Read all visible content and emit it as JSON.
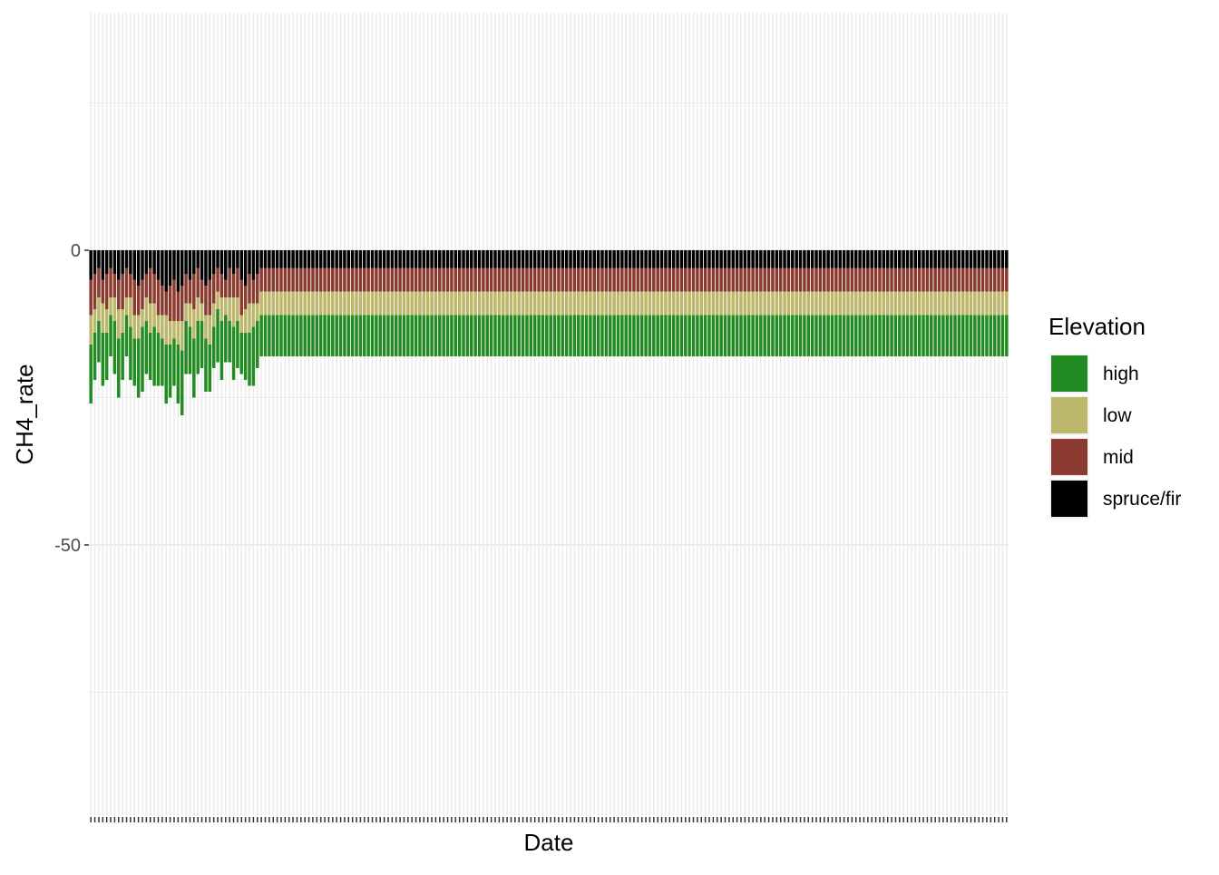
{
  "chart_data": {
    "type": "bar",
    "stacked": true,
    "title": "",
    "xlabel": "Date",
    "ylabel": "CH4_rate",
    "y_ticks": [
      0,
      -50
    ],
    "y_tick_labels": [
      "0",
      "-50"
    ],
    "ylim": [
      -95,
      40
    ],
    "x_tick_labels_shown": false,
    "grid": true,
    "legend": {
      "title": "Elevation",
      "position": "right",
      "entries": [
        "high",
        "low",
        "mid",
        "spruce/fir"
      ]
    },
    "series_order_bottom_to_top": [
      "spruce/fir",
      "mid",
      "low",
      "high"
    ],
    "colors": {
      "high": "#228B22",
      "low": "#BDB76B",
      "mid": "#8B3A2F",
      "spruce/fir": "#000000"
    },
    "panel_background": "#ffffff",
    "grid_color": "#ebebeb",
    "x": [
      0,
      1,
      2,
      3,
      4,
      5,
      6,
      7,
      8,
      9,
      10,
      11,
      12,
      13,
      14,
      15,
      16,
      17,
      18,
      19,
      20,
      21,
      22,
      23,
      24,
      25,
      26,
      27,
      28,
      29,
      30,
      31,
      32,
      33,
      34,
      35,
      36,
      37,
      38,
      39,
      40,
      41,
      42,
      43,
      44,
      45,
      46,
      47,
      48,
      49,
      50,
      51,
      52,
      53,
      54,
      55,
      56,
      57,
      58,
      59,
      60,
      61,
      62,
      63,
      64,
      65,
      66,
      67,
      68,
      69,
      70,
      71,
      72,
      73,
      74,
      75,
      76,
      77,
      78,
      79,
      80,
      81,
      82,
      83,
      84,
      85,
      86,
      87,
      88,
      89,
      90,
      91,
      92,
      93,
      94,
      95,
      96,
      97,
      98,
      99,
      100,
      101,
      102,
      103,
      104,
      105,
      106,
      107,
      108,
      109,
      110,
      111,
      112,
      113,
      114,
      115,
      116,
      117,
      118,
      119,
      120,
      121,
      122,
      123,
      124,
      125,
      126,
      127,
      128,
      129,
      130,
      131,
      132,
      133,
      134,
      135,
      136,
      137,
      138,
      139,
      140,
      141,
      142,
      143,
      144,
      145,
      146,
      147,
      148,
      149,
      150,
      151,
      152,
      153,
      154,
      155,
      156,
      157,
      158,
      159,
      160,
      161,
      162,
      163,
      164,
      165,
      166,
      167,
      168,
      169,
      170,
      171,
      172,
      173,
      174,
      175,
      176,
      177,
      178,
      179,
      180,
      181,
      182,
      183,
      184,
      185,
      186,
      187,
      188,
      189,
      190,
      191,
      192,
      193,
      194,
      195,
      196,
      197,
      198,
      199,
      200,
      201,
      202,
      203,
      204,
      205,
      206,
      207,
      208,
      209,
      210,
      211,
      212,
      213,
      214,
      215,
      216,
      217,
      218,
      219,
      220,
      221,
      222,
      223,
      224,
      225,
      226,
      227,
      228,
      229,
      230,
      231
    ],
    "series": [
      {
        "name": "spruce/fir",
        "values": [
          -5,
          -4,
          -3,
          -5,
          -4,
          -3,
          -4,
          -5,
          -4,
          -3,
          -4,
          -5,
          -6,
          -5,
          -4,
          -3,
          -4,
          -5,
          -6,
          -7,
          -6,
          -5,
          -7,
          -6,
          -4,
          -5,
          -4,
          -3,
          -5,
          -6,
          -5,
          -4,
          -3,
          -4,
          -5,
          -3,
          -4,
          -3,
          -5,
          -6,
          -4,
          -5,
          -4,
          -3,
          -3,
          -3,
          -3,
          -3,
          -3,
          -3,
          -3,
          -3,
          -3,
          -3,
          -3,
          -3,
          -3,
          -3,
          -3,
          -3,
          -3,
          -3,
          -3,
          -3,
          -3,
          -3,
          -3,
          -3,
          -3,
          -3,
          -3,
          -3,
          -3,
          -3,
          -3,
          -3,
          -3,
          -3,
          -3,
          -3,
          -3,
          -3,
          -3,
          -3,
          -3,
          -3,
          -3,
          -3,
          -3,
          -3,
          -3,
          -3,
          -3,
          -3,
          -3,
          -3,
          -3,
          -3,
          -3,
          -3,
          -3,
          -3,
          -3,
          -3,
          -3,
          -3,
          -3,
          -3,
          -3,
          -3,
          -3,
          -3,
          -3,
          -3,
          -3,
          -3,
          -3,
          -3,
          -3,
          -3,
          -3,
          -3,
          -3,
          -3,
          -3,
          -3,
          -3,
          -3,
          -3,
          -3,
          -3,
          -3,
          -3,
          -3,
          -3,
          -3,
          -3,
          -3,
          -3,
          -3,
          -3,
          -3,
          -3,
          -3,
          -3,
          -3,
          -3,
          -3,
          -3,
          -3,
          -3,
          -3,
          -3,
          -3,
          -3,
          -3,
          -3,
          -3,
          -3,
          -3,
          -3,
          -3,
          -3,
          -3,
          -3,
          -3,
          -3,
          -3,
          -3,
          -3,
          -3,
          -3,
          -3,
          -3,
          -3,
          -3,
          -3,
          -3,
          -3,
          -3,
          -3,
          -3,
          -3,
          -3,
          -3,
          -3,
          -3,
          -3,
          -3,
          -3,
          -3,
          -3,
          -3,
          -3,
          -3,
          -3,
          -3,
          -3,
          -3,
          -3,
          -3,
          -3,
          -3,
          -3,
          -3,
          -3,
          -3,
          -3,
          -3,
          -3,
          -3,
          -3,
          -3,
          -3,
          -3,
          -3,
          -3,
          -3,
          -3,
          -3,
          -3,
          -3,
          -3,
          -3,
          -3,
          -3,
          -3,
          -3,
          -3,
          -3,
          -3,
          -3
        ]
      },
      {
        "name": "mid",
        "values": [
          -6,
          -6,
          -5,
          -4,
          -6,
          -5,
          -4,
          -5,
          -6,
          -5,
          -4,
          -6,
          -5,
          -5,
          -4,
          -6,
          -5,
          -6,
          -5,
          -4,
          -6,
          -7,
          -5,
          -6,
          -5,
          -4,
          -6,
          -5,
          -4,
          -5,
          -6,
          -5,
          -4,
          -4,
          -3,
          -5,
          -4,
          -5,
          -6,
          -4,
          -5,
          -4,
          -5,
          -4,
          -4,
          -4,
          -4,
          -4,
          -4,
          -4,
          -4,
          -4,
          -4,
          -4,
          -4,
          -4,
          -4,
          -4,
          -4,
          -4,
          -4,
          -4,
          -4,
          -4,
          -4,
          -4,
          -4,
          -4,
          -4,
          -4,
          -4,
          -4,
          -4,
          -4,
          -4,
          -4,
          -4,
          -4,
          -4,
          -4,
          -4,
          -4,
          -4,
          -4,
          -4,
          -4,
          -4,
          -4,
          -4,
          -4,
          -4,
          -4,
          -4,
          -4,
          -4,
          -4,
          -4,
          -4,
          -4,
          -4,
          -4,
          -4,
          -4,
          -4,
          -4,
          -4,
          -4,
          -4,
          -4,
          -4,
          -4,
          -4,
          -4,
          -4,
          -4,
          -4,
          -4,
          -4,
          -4,
          -4,
          -4,
          -4,
          -4,
          -4,
          -4,
          -4,
          -4,
          -4,
          -4,
          -4,
          -4,
          -4,
          -4,
          -4,
          -4,
          -4,
          -4,
          -4,
          -4,
          -4,
          -4,
          -4,
          -4,
          -4,
          -4,
          -4,
          -4,
          -4,
          -4,
          -4,
          -4,
          -4,
          -4,
          -4,
          -4,
          -4,
          -4,
          -4,
          -4,
          -4,
          -4,
          -4,
          -4,
          -4,
          -4,
          -4,
          -4,
          -4,
          -4,
          -4,
          -4,
          -4,
          -4,
          -4,
          -4,
          -4,
          -4,
          -4,
          -4,
          -4,
          -4,
          -4,
          -4,
          -4,
          -4,
          -4,
          -4,
          -4,
          -4,
          -4,
          -4,
          -4,
          -4,
          -4,
          -4,
          -4,
          -4,
          -4,
          -4,
          -4,
          -4,
          -4,
          -4,
          -4,
          -4,
          -4,
          -4,
          -4,
          -4,
          -4,
          -4,
          -4,
          -4,
          -4,
          -4,
          -4,
          -4,
          -4,
          -4,
          -4,
          -4,
          -4,
          -4,
          -4,
          -4,
          -4,
          -4,
          -4,
          -4,
          -4,
          -4,
          -4
        ]
      },
      {
        "name": "low",
        "values": [
          -5,
          -4,
          -4,
          -5,
          -4,
          -3,
          -4,
          -5,
          -4,
          -3,
          -5,
          -4,
          -4,
          -3,
          -4,
          -5,
          -4,
          -3,
          -4,
          -5,
          -4,
          -3,
          -4,
          -5,
          -3,
          -4,
          -5,
          -4,
          -3,
          -4,
          -5,
          -4,
          -3,
          -4,
          -3,
          -4,
          -5,
          -4,
          -3,
          -4,
          -5,
          -4,
          -3,
          -4,
          -4,
          -4,
          -4,
          -4,
          -4,
          -4,
          -4,
          -4,
          -4,
          -4,
          -4,
          -4,
          -4,
          -4,
          -4,
          -4,
          -4,
          -4,
          -4,
          -4,
          -4,
          -4,
          -4,
          -4,
          -4,
          -4,
          -4,
          -4,
          -4,
          -4,
          -4,
          -4,
          -4,
          -4,
          -4,
          -4,
          -4,
          -4,
          -4,
          -4,
          -4,
          -4,
          -4,
          -4,
          -4,
          -4,
          -4,
          -4,
          -4,
          -4,
          -4,
          -4,
          -4,
          -4,
          -4,
          -4,
          -4,
          -4,
          -4,
          -4,
          -4,
          -4,
          -4,
          -4,
          -4,
          -4,
          -4,
          -4,
          -4,
          -4,
          -4,
          -4,
          -4,
          -4,
          -4,
          -4,
          -4,
          -4,
          -4,
          -4,
          -4,
          -4,
          -4,
          -4,
          -4,
          -4,
          -4,
          -4,
          -4,
          -4,
          -4,
          -4,
          -4,
          -4,
          -4,
          -4,
          -4,
          -4,
          -4,
          -4,
          -4,
          -4,
          -4,
          -4,
          -4,
          -4,
          -4,
          -4,
          -4,
          -4,
          -4,
          -4,
          -4,
          -4,
          -4,
          -4,
          -4,
          -4,
          -4,
          -4,
          -4,
          -4,
          -4,
          -4,
          -4,
          -4,
          -4,
          -4,
          -4,
          -4,
          -4,
          -4,
          -4,
          -4,
          -4,
          -4,
          -4,
          -4,
          -4,
          -4,
          -4,
          -4,
          -4,
          -4,
          -4,
          -4,
          -4,
          -4,
          -4,
          -4,
          -4,
          -4,
          -4,
          -4,
          -4,
          -4,
          -4,
          -4,
          -4,
          -4,
          -4,
          -4,
          -4,
          -4,
          -4,
          -4,
          -4,
          -4,
          -4,
          -4,
          -4,
          -4,
          -4,
          -4,
          -4,
          -4,
          -4,
          -4,
          -4,
          -4,
          -4,
          -4,
          -4,
          -4,
          -4,
          -4,
          -4,
          -4
        ]
      },
      {
        "name": "high",
        "values": [
          -10,
          -8,
          -7,
          -9,
          -8,
          -7,
          -9,
          -10,
          -8,
          -7,
          -9,
          -8,
          -10,
          -11,
          -9,
          -8,
          -10,
          -9,
          -8,
          -10,
          -9,
          -8,
          -10,
          -11,
          -9,
          -8,
          -10,
          -9,
          -8,
          -9,
          -8,
          -7,
          -9,
          -10,
          -8,
          -7,
          -9,
          -8,
          -7,
          -8,
          -9,
          -10,
          -8,
          -7,
          -7,
          -7,
          -7,
          -7,
          -7,
          -7,
          -7,
          -7,
          -7,
          -7,
          -7,
          -7,
          -7,
          -7,
          -7,
          -7,
          -7,
          -7,
          -7,
          -7,
          -7,
          -7,
          -7,
          -7,
          -7,
          -7,
          -7,
          -7,
          -7,
          -7,
          -7,
          -7,
          -7,
          -7,
          -7,
          -7,
          -7,
          -7,
          -7,
          -7,
          -7,
          -7,
          -7,
          -7,
          -7,
          -7,
          -7,
          -7,
          -7,
          -7,
          -7,
          -7,
          -7,
          -7,
          -7,
          -7,
          -7,
          -7,
          -7,
          -7,
          -7,
          -7,
          -7,
          -7,
          -7,
          -7,
          -7,
          -7,
          -7,
          -7,
          -7,
          -7,
          -7,
          -7,
          -7,
          -7,
          -7,
          -7,
          -7,
          -7,
          -7,
          -7,
          -7,
          -7,
          -7,
          -7,
          -7,
          -7,
          -7,
          -7,
          -7,
          -7,
          -7,
          -7,
          -7,
          -7,
          -7,
          -7,
          -7,
          -7,
          -7,
          -7,
          -7,
          -7,
          -7,
          -7,
          -7,
          -7,
          -7,
          -7,
          -7,
          -7,
          -7,
          -7,
          -7,
          -7,
          -7,
          -7,
          -7,
          -7,
          -7,
          -7,
          -7,
          -7,
          -7,
          -7,
          -7,
          -7,
          -7,
          -7,
          -7,
          -7,
          -7,
          -7,
          -7,
          -7,
          -7,
          -7,
          -7,
          -7,
          -7,
          -7,
          -7,
          -7,
          -7,
          -7,
          -7,
          -7,
          -7,
          -7,
          -7,
          -7,
          -7,
          -7,
          -7,
          -7,
          -7,
          -7,
          -7,
          -7,
          -7,
          -7,
          -7,
          -7,
          -7,
          -7,
          -7,
          -7,
          -7,
          -7,
          -7,
          -7,
          -7,
          -7,
          -7,
          -7,
          -7,
          -7,
          -7,
          -7,
          -7,
          -7,
          -7,
          -7,
          -7,
          -7,
          -7,
          -7
        ]
      }
    ]
  }
}
